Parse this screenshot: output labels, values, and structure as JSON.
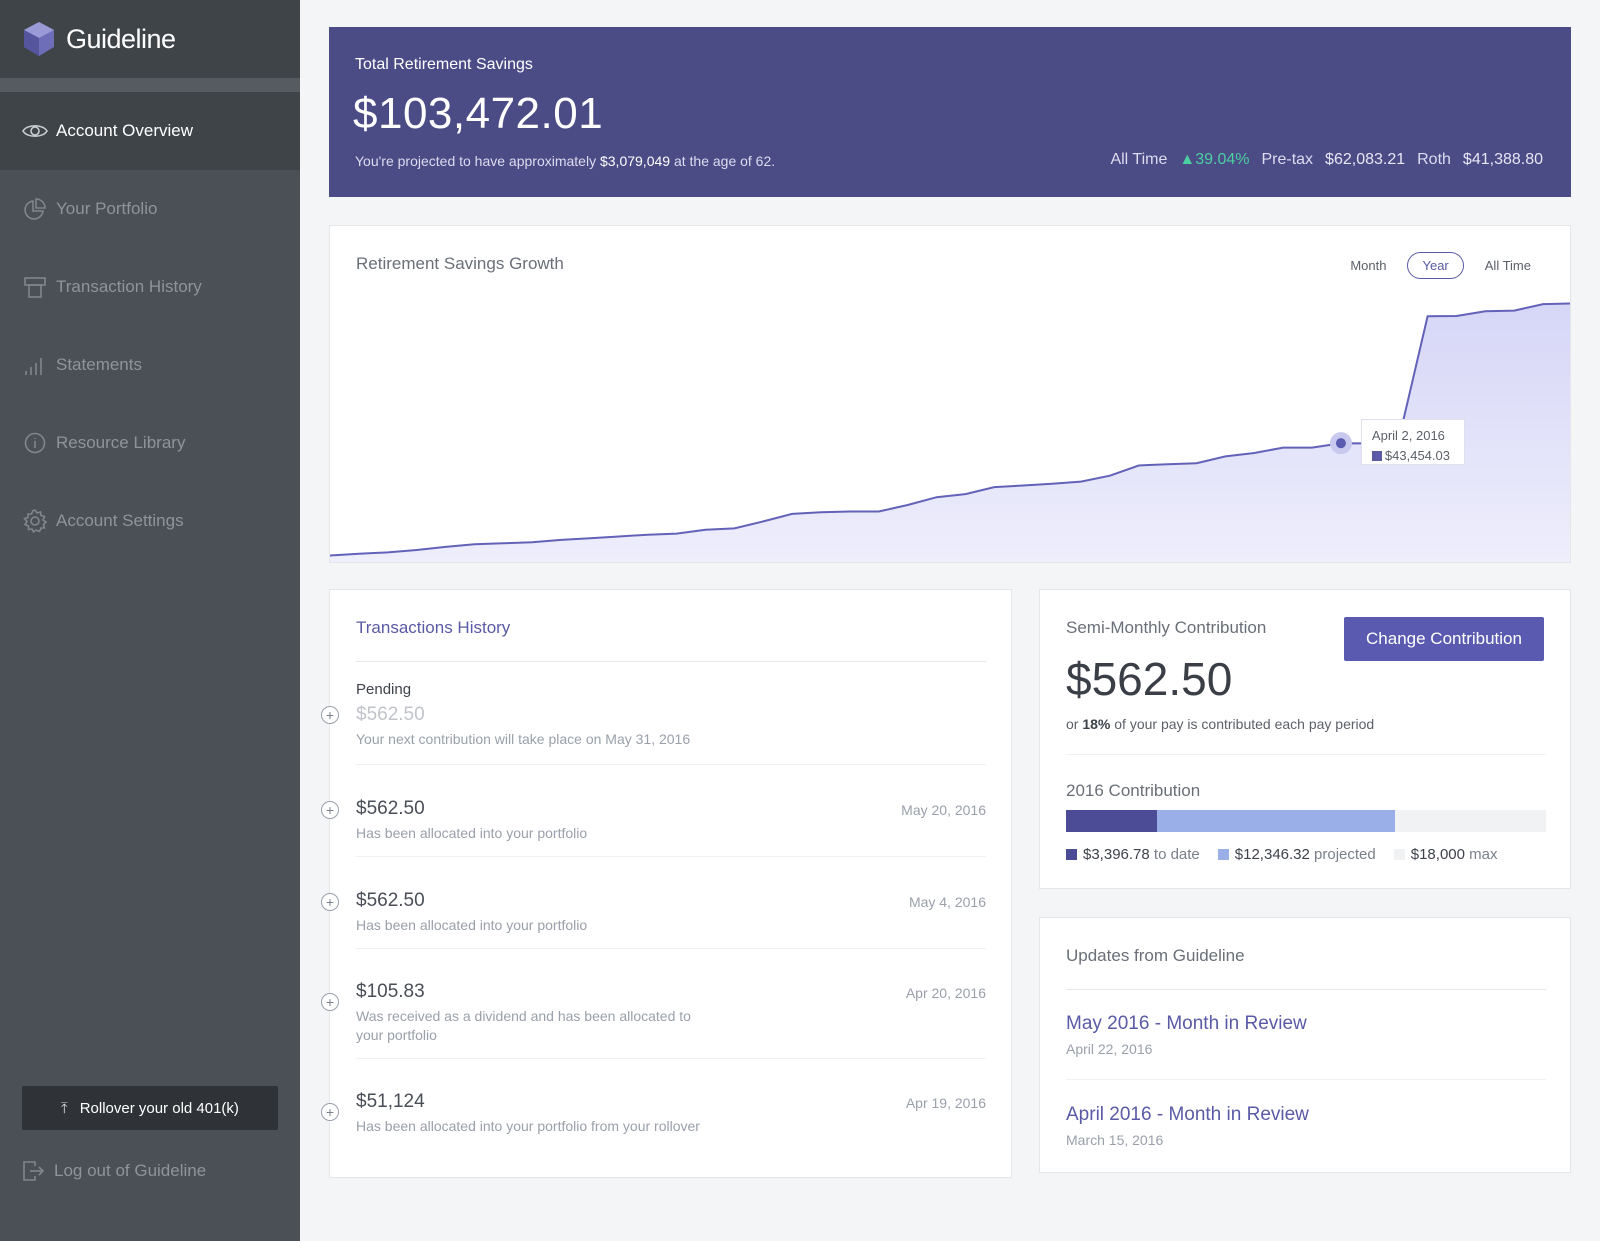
{
  "brand": {
    "name": "Guideline"
  },
  "sidebar": {
    "items": [
      {
        "label": "Account Overview",
        "icon": "eye-icon",
        "active": true
      },
      {
        "label": "Your Portfolio",
        "icon": "pie-chart-icon"
      },
      {
        "label": "Transaction History",
        "icon": "receipt-icon"
      },
      {
        "label": "Statements",
        "icon": "bar-chart-icon"
      },
      {
        "label": "Resource Library",
        "icon": "info-icon"
      },
      {
        "label": "Account Settings",
        "icon": "gear-icon"
      }
    ],
    "rollover_label": "Rollover your old 401(k)",
    "logout_label": "Log out of Guideline"
  },
  "hero": {
    "title": "Total Retirement Savings",
    "amount": "$103,472.01",
    "projection_prefix": "You're projected to have approximately",
    "projection_value": "$3,079,049",
    "projection_suffix": "at the age of 62.",
    "all_time_label": "All Time",
    "all_time_change": "39.04%",
    "pretax_label": "Pre-tax",
    "pretax_value": "$62,083.21",
    "roth_label": "Roth",
    "roth_value": "$41,388.80"
  },
  "growth": {
    "title": "Retirement Savings Growth",
    "tabs": [
      "Month",
      "Year",
      "All Time"
    ],
    "selected_tab": "Year",
    "tooltip_date": "April 2, 2016",
    "tooltip_value": "$43,454.03"
  },
  "chart_data": {
    "type": "area",
    "title": "Retirement Savings Growth",
    "series": [
      {
        "values": [
          0.2,
          0.9,
          1.4,
          2.3,
          3.5,
          4.5,
          4.9,
          5.3,
          6.2,
          6.8,
          7.5,
          8.2,
          8.6,
          10.1,
          10.6,
          13.3,
          16.2,
          16.8,
          17.1,
          17.1,
          19.6,
          22.6,
          23.8,
          26.5,
          27.1,
          27.8,
          28.6,
          30.9,
          34.8,
          35.3,
          35.7,
          38.3,
          39.6,
          41.7,
          41.7,
          43.4,
          43.3,
          44.6,
          92.2,
          92.3,
          94.1,
          94.4,
          96.9,
          97.1
        ]
      }
    ],
    "highlight": {
      "date": "April 2, 2016",
      "value": 43454.03
    },
    "grid": false,
    "legend": "none"
  },
  "transactions": {
    "title": "Transactions History",
    "pending_label": "Pending",
    "pending_amount": "$562.50",
    "pending_desc": "Your next contribution will take place on May 31, 2016",
    "items": [
      {
        "amount": "$562.50",
        "desc": "Has been allocated into your portfolio",
        "date": "May 20, 2016"
      },
      {
        "amount": "$562.50",
        "desc": "Has been allocated into your portfolio",
        "date": "May 4, 2016"
      },
      {
        "amount": "$105.83",
        "desc": "Was received as a dividend and has been allocated to your portfolio",
        "date": "Apr 20, 2016"
      },
      {
        "amount": "$51,124",
        "desc": "Has been allocated into your portfolio from your rollover",
        "date": "Apr 19, 2016"
      }
    ]
  },
  "contribution": {
    "title": "Semi-Monthly Contribution",
    "button_label": "Change Contribution",
    "amount": "$562.50",
    "pct_prefix": "or",
    "pct_value": "18%",
    "pct_suffix": "of your pay is contributed each pay period",
    "year_title": "2016 Contribution",
    "to_date_value": "$3,396.78",
    "to_date_label": "to date",
    "projected_value": "$12,346.32",
    "projected_label": "projected",
    "max_value": "$18,000",
    "max_label": "max",
    "to_date_amount": 3396.78,
    "projected_amount": 12346.32,
    "max_amount": 18000,
    "colors": {
      "to_date": "#4b4b96",
      "projected": "#9aaee8",
      "max": "#f1f2f4"
    }
  },
  "updates": {
    "title": "Updates from Guideline",
    "items": [
      {
        "title": "May 2016 - Month in Review",
        "date": "April 22, 2016"
      },
      {
        "title": "April 2016 - Month in Review",
        "date": "March 15, 2016"
      }
    ]
  },
  "colors": {
    "accent": "#5a5aa6",
    "hero_bg": "#4b4b86",
    "sidebar_bg": "#4a5055",
    "positive": "#4ccfa0"
  }
}
